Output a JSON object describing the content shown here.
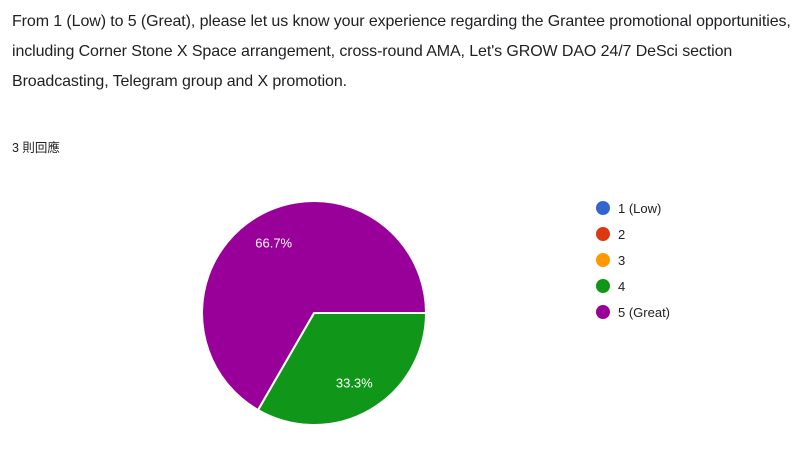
{
  "question": {
    "title": "From 1 (Low) to 5 (Great), please let us know your experience regarding the Grantee promotional opportunities, including Corner Stone X Space arrangement, cross-round AMA, Let's GROW DAO 24/7 DeSci section Broadcasting, Telegram group and X promotion.",
    "response_count": "3 則回應"
  },
  "chart_data": {
    "type": "pie",
    "categories": [
      "1 (Low)",
      "2",
      "3",
      "4",
      "5 (Great)"
    ],
    "values": [
      0,
      0,
      0,
      1,
      2
    ],
    "percent_labels": [
      "",
      "",
      "",
      "33.3%",
      "66.7%"
    ],
    "colors": [
      "#3366cc",
      "#dc3912",
      "#ff9900",
      "#109618",
      "#990099"
    ],
    "legend_position": "right",
    "start_angle_deg": 90,
    "slice_label_color": "#ffffff",
    "slice_border_color": "#ffffff",
    "background": "#ffffff"
  }
}
